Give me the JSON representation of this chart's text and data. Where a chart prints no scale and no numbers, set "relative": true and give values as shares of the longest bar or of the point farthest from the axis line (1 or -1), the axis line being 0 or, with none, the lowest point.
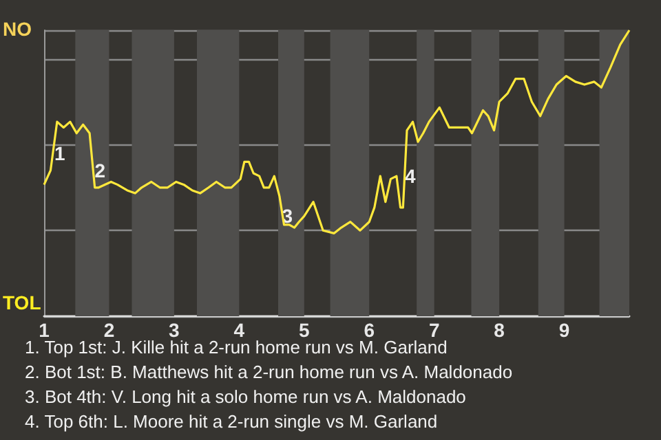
{
  "chart_data": {
    "type": "line",
    "x": [
      1.0,
      1.1,
      1.2,
      1.3,
      1.4,
      1.5,
      1.6,
      1.7,
      1.78,
      1.84,
      2.03,
      2.13,
      2.28,
      2.4,
      2.5,
      2.65,
      2.78,
      2.9,
      3.03,
      3.15,
      3.28,
      3.4,
      3.53,
      3.65,
      3.78,
      3.88,
      4.02,
      4.08,
      4.15,
      4.22,
      4.31,
      4.38,
      4.46,
      4.54,
      4.62,
      4.69,
      4.77,
      4.85,
      4.92,
      5.0,
      5.14,
      5.29,
      5.46,
      5.57,
      5.71,
      5.86,
      6.0,
      6.08,
      6.17,
      6.25,
      6.33,
      6.42,
      6.48,
      6.52,
      6.58,
      6.67,
      6.75,
      6.83,
      6.92,
      7.08,
      7.23,
      7.52,
      7.58,
      7.75,
      7.83,
      7.92,
      8.0,
      8.13,
      8.25,
      8.38,
      8.5,
      8.63,
      8.75,
      8.88,
      9.03,
      9.17,
      9.31,
      9.46,
      9.57,
      9.71,
      9.86,
      10
    ],
    "series": [
      {
        "color": "#ffe83c",
        "values": [
          0.46,
          0.51,
          0.68,
          0.66,
          0.68,
          0.64,
          0.67,
          0.64,
          0.45,
          0.45,
          0.47,
          0.46,
          0.44,
          0.43,
          0.45,
          0.47,
          0.45,
          0.45,
          0.47,
          0.46,
          0.44,
          0.43,
          0.45,
          0.47,
          0.45,
          0.45,
          0.48,
          0.54,
          0.54,
          0.5,
          0.49,
          0.45,
          0.45,
          0.49,
          0.42,
          0.32,
          0.32,
          0.31,
          0.33,
          0.35,
          0.4,
          0.3,
          0.29,
          0.31,
          0.33,
          0.3,
          0.33,
          0.38,
          0.49,
          0.4,
          0.48,
          0.49,
          0.38,
          0.38,
          0.65,
          0.68,
          0.61,
          0.64,
          0.68,
          0.73,
          0.66,
          0.66,
          0.64,
          0.72,
          0.7,
          0.65,
          0.75,
          0.78,
          0.83,
          0.83,
          0.75,
          0.7,
          0.76,
          0.81,
          0.84,
          0.82,
          0.81,
          0.82,
          0.8,
          0.87,
          0.95,
          1
        ]
      }
    ],
    "relative": true,
    "xlim": [
      1,
      10
    ],
    "xticks": [
      1,
      2,
      3,
      4,
      5,
      6,
      7,
      8,
      9
    ],
    "grid": "y",
    "marker": "none",
    "bands": [
      {
        "axis": "x",
        "from": 1.48,
        "to": 2,
        "color": "#4f4e4c"
      },
      {
        "axis": "x",
        "from": 2.35,
        "to": 3,
        "color": "#4f4e4c"
      },
      {
        "axis": "x",
        "from": 3.35,
        "to": 4,
        "color": "#4f4e4c"
      },
      {
        "axis": "x",
        "from": 4.6,
        "to": 5,
        "color": "#4f4e4c"
      },
      {
        "axis": "x",
        "from": 5.4,
        "to": 6,
        "color": "#4f4e4c"
      },
      {
        "axis": "x",
        "from": 6.73,
        "to": 7,
        "color": "#4f4e4c"
      },
      {
        "axis": "x",
        "from": 7.57,
        "to": 8,
        "color": "#4f4e4c"
      },
      {
        "axis": "x",
        "from": 8.6,
        "to": 9,
        "color": "#4f4e4c"
      },
      {
        "axis": "x",
        "from": 9.54,
        "to": 10,
        "color": "#4f4e4c"
      }
    ],
    "annotations": [
      "NO",
      "TOL",
      {
        "text": "1",
        "x": 1.24,
        "y": 0.57
      },
      {
        "text": "2",
        "x": 1.86,
        "y": 0.51
      },
      {
        "text": "3",
        "x": 4.74,
        "y": 0.35
      },
      {
        "text": "4",
        "x": 6.63,
        "y": 0.49
      },
      "1. Top 1st: J. Kille hit a 2-run home run vs M. Garland",
      "2. Bot 1st: B. Matthews hit a 2-run home run vs A. Maldonado",
      "3. Bot 4th: V. Long hit a solo home run vs A. Maldonado",
      "4. Top 6th: L. Moore hit a 2-run single vs M. Garland"
    ]
  }
}
